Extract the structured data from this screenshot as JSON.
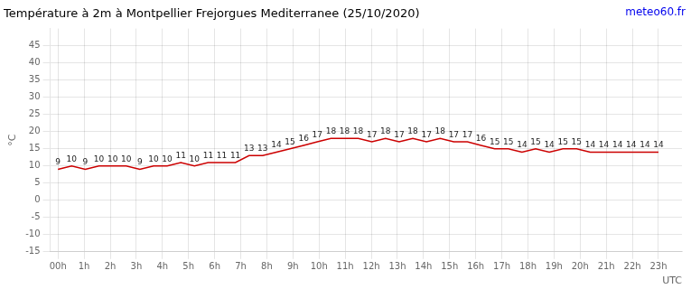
{
  "chart_data": {
    "type": "line",
    "title": "Température à 2m à Montpellier Frejorgues Mediterranee (25/10/2020)",
    "xlabel": "UTC",
    "ylabel": "°C",
    "annotations": [
      "meteo60.fr"
    ],
    "x": [
      0,
      0.522727,
      1.045455,
      1.568182,
      2.090909,
      2.613636,
      3.136364,
      3.659091,
      4.181818,
      4.704545,
      5.227273,
      5.75,
      6.272727,
      6.795455,
      7.318182,
      7.840909,
      8.363636,
      8.886364,
      9.409091,
      9.931818,
      10.454545,
      10.977273,
      11.5,
      12.022727,
      12.545455,
      13.068182,
      13.590909,
      14.113636,
      14.636364,
      15.159091,
      15.681818,
      16.204545,
      16.727273,
      17.25,
      17.772727,
      18.295455,
      18.818182,
      19.340909,
      19.863636,
      20.386364,
      20.909091,
      21.431818,
      21.954545,
      22.477273,
      23
    ],
    "values": [
      9,
      10,
      9,
      10,
      10,
      10,
      9,
      10,
      10,
      11,
      10,
      11,
      11,
      11,
      13,
      13,
      14,
      15,
      16,
      17,
      18,
      18,
      18,
      17,
      18,
      17,
      18,
      17,
      18,
      17,
      17,
      16,
      15,
      15,
      14,
      15,
      14,
      15,
      15,
      14,
      14,
      14,
      14,
      14,
      14
    ],
    "color": "#cc0000",
    "data_labels": true,
    "grid": true,
    "xlim": [
      -0.3,
      23.9
    ],
    "xticks": [
      {
        "value": 0,
        "label": "00h"
      },
      {
        "value": 1,
        "label": "1h"
      },
      {
        "value": 2,
        "label": "2h"
      },
      {
        "value": 3,
        "label": "3h"
      },
      {
        "value": 4,
        "label": "4h"
      },
      {
        "value": 5,
        "label": "5h"
      },
      {
        "value": 6,
        "label": "6h"
      },
      {
        "value": 7,
        "label": "7h"
      },
      {
        "value": 8,
        "label": "8h"
      },
      {
        "value": 9,
        "label": "9h"
      },
      {
        "value": 10,
        "label": "10h"
      },
      {
        "value": 11,
        "label": "11h"
      },
      {
        "value": 12,
        "label": "12h"
      },
      {
        "value": 13,
        "label": "13h"
      },
      {
        "value": 14,
        "label": "14h"
      },
      {
        "value": 15,
        "label": "15h"
      },
      {
        "value": 16,
        "label": "16h"
      },
      {
        "value": 17,
        "label": "17h"
      },
      {
        "value": 18,
        "label": "18h"
      },
      {
        "value": 19,
        "label": "19h"
      },
      {
        "value": 20,
        "label": "20h"
      },
      {
        "value": 21,
        "label": "21h"
      },
      {
        "value": 22,
        "label": "22h"
      },
      {
        "value": 23,
        "label": "23h"
      }
    ],
    "ylim": [
      -15,
      50
    ],
    "yticks": [
      -15,
      -10,
      -5,
      0,
      5,
      10,
      15,
      20,
      25,
      30,
      35,
      40,
      45
    ]
  }
}
